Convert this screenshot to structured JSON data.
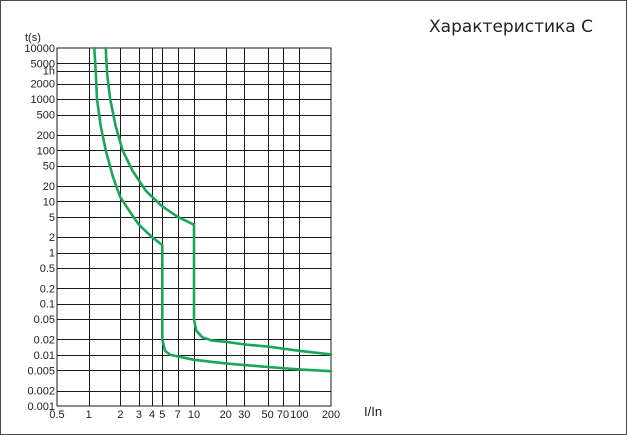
{
  "chart_data": {
    "type": "line",
    "title": "Характеристика C",
    "xlabel": "I/In",
    "ylabel": "t(s)",
    "x_scale": "log",
    "y_scale": "log",
    "grid": true,
    "xlim": [
      0.5,
      200
    ],
    "ylim": [
      0.001,
      10000
    ],
    "x_ticks": [
      0.5,
      1,
      2,
      3,
      4,
      5,
      7,
      10,
      20,
      30,
      50,
      70,
      100,
      200
    ],
    "x_tick_labels": [
      "0.5",
      "1",
      "2",
      "3",
      "4",
      "5",
      "7",
      "10",
      "20",
      "30",
      "50",
      "70",
      "100",
      "200"
    ],
    "y_ticks": [
      0.001,
      0.002,
      0.005,
      0.01,
      0.02,
      0.05,
      0.1,
      0.2,
      0.5,
      1,
      2,
      5,
      10,
      20,
      50,
      100,
      200,
      500,
      1000,
      2000,
      3600,
      5000,
      10000
    ],
    "y_tick_labels": [
      "0.001",
      "0.002",
      "0.005",
      "0.01",
      "0.02",
      "0.05",
      "0.1",
      "0.2",
      "0.5",
      "1",
      "2",
      "5",
      "10",
      "20",
      "50",
      "100",
      "200",
      "500",
      "1000",
      "2000",
      "1h",
      "5000",
      "10000"
    ],
    "line_color": "#1aa65a",
    "series": [
      {
        "points": [
          [
            1.13,
            10000
          ],
          [
            1.17,
            3000
          ],
          [
            1.2,
            1000
          ],
          [
            1.3,
            300
          ],
          [
            1.45,
            100
          ],
          [
            1.7,
            30
          ],
          [
            2.0,
            12
          ],
          [
            2.5,
            6
          ],
          [
            3.0,
            3.5
          ],
          [
            4.0,
            2
          ],
          [
            5.0,
            1.4
          ],
          [
            5.0,
            0.02
          ],
          [
            5.3,
            0.012
          ],
          [
            6.0,
            0.01
          ],
          [
            10,
            0.008
          ],
          [
            20,
            0.0068
          ],
          [
            50,
            0.0058
          ],
          [
            100,
            0.0052
          ],
          [
            200,
            0.0048
          ]
        ]
      },
      {
        "points": [
          [
            1.45,
            10000
          ],
          [
            1.5,
            3000
          ],
          [
            1.6,
            1000
          ],
          [
            1.8,
            300
          ],
          [
            2.1,
            100
          ],
          [
            2.6,
            40
          ],
          [
            3.5,
            16
          ],
          [
            5,
            8
          ],
          [
            7,
            5
          ],
          [
            10,
            3.5
          ],
          [
            10,
            0.05
          ],
          [
            10.5,
            0.03
          ],
          [
            12,
            0.022
          ],
          [
            15,
            0.019
          ],
          [
            20,
            0.018
          ],
          [
            30,
            0.016
          ],
          [
            50,
            0.0145
          ],
          [
            100,
            0.012
          ],
          [
            200,
            0.0102
          ]
        ]
      }
    ]
  }
}
